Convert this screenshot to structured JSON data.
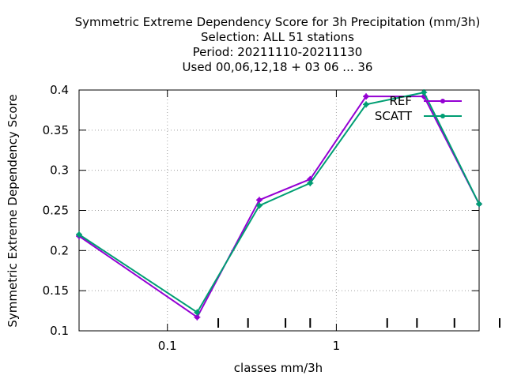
{
  "chart_data": {
    "type": "line",
    "title_lines": [
      "Symmetric Extreme Dependency Score  for 3h Precipitation (mm/3h)",
      "Selection: ALL     51 stations",
      "Period: 20211110-20211130",
      "Used  00,06,12,18 + 03 06 ... 36"
    ],
    "xlabel": "classes mm/3h",
    "ylabel": "Symmetric Extreme Dependency Score",
    "x_scale": "log",
    "xlim": [
      0.03,
      7.0
    ],
    "ylim": [
      0.1,
      0.4
    ],
    "x_major_ticks": [
      0.1,
      1
    ],
    "x_major_tick_labels": [
      "0.1",
      "1"
    ],
    "x_minor_ticks": [
      0.2,
      0.3,
      0.5,
      0.7,
      2,
      3,
      5
    ],
    "y_ticks": [
      0.1,
      0.15,
      0.2,
      0.25,
      0.3,
      0.35,
      0.4
    ],
    "y_tick_labels": [
      "0.1",
      "0.15",
      "0.2",
      "0.25",
      "0.3",
      "0.35",
      "0.4"
    ],
    "grid": true,
    "legend_position": "top-right",
    "series": [
      {
        "name": "REF",
        "color": "#9400d3",
        "x": [
          0.03,
          0.15,
          0.35,
          0.7,
          1.5,
          3.3,
          7.0
        ],
        "y": [
          0.218,
          0.117,
          0.263,
          0.289,
          0.392,
          0.392,
          0.258
        ]
      },
      {
        "name": "SCATT",
        "color": "#009e73",
        "x": [
          0.03,
          0.15,
          0.35,
          0.7,
          1.5,
          3.3,
          7.0
        ],
        "y": [
          0.22,
          0.123,
          0.256,
          0.284,
          0.382,
          0.397,
          0.258
        ]
      }
    ]
  }
}
